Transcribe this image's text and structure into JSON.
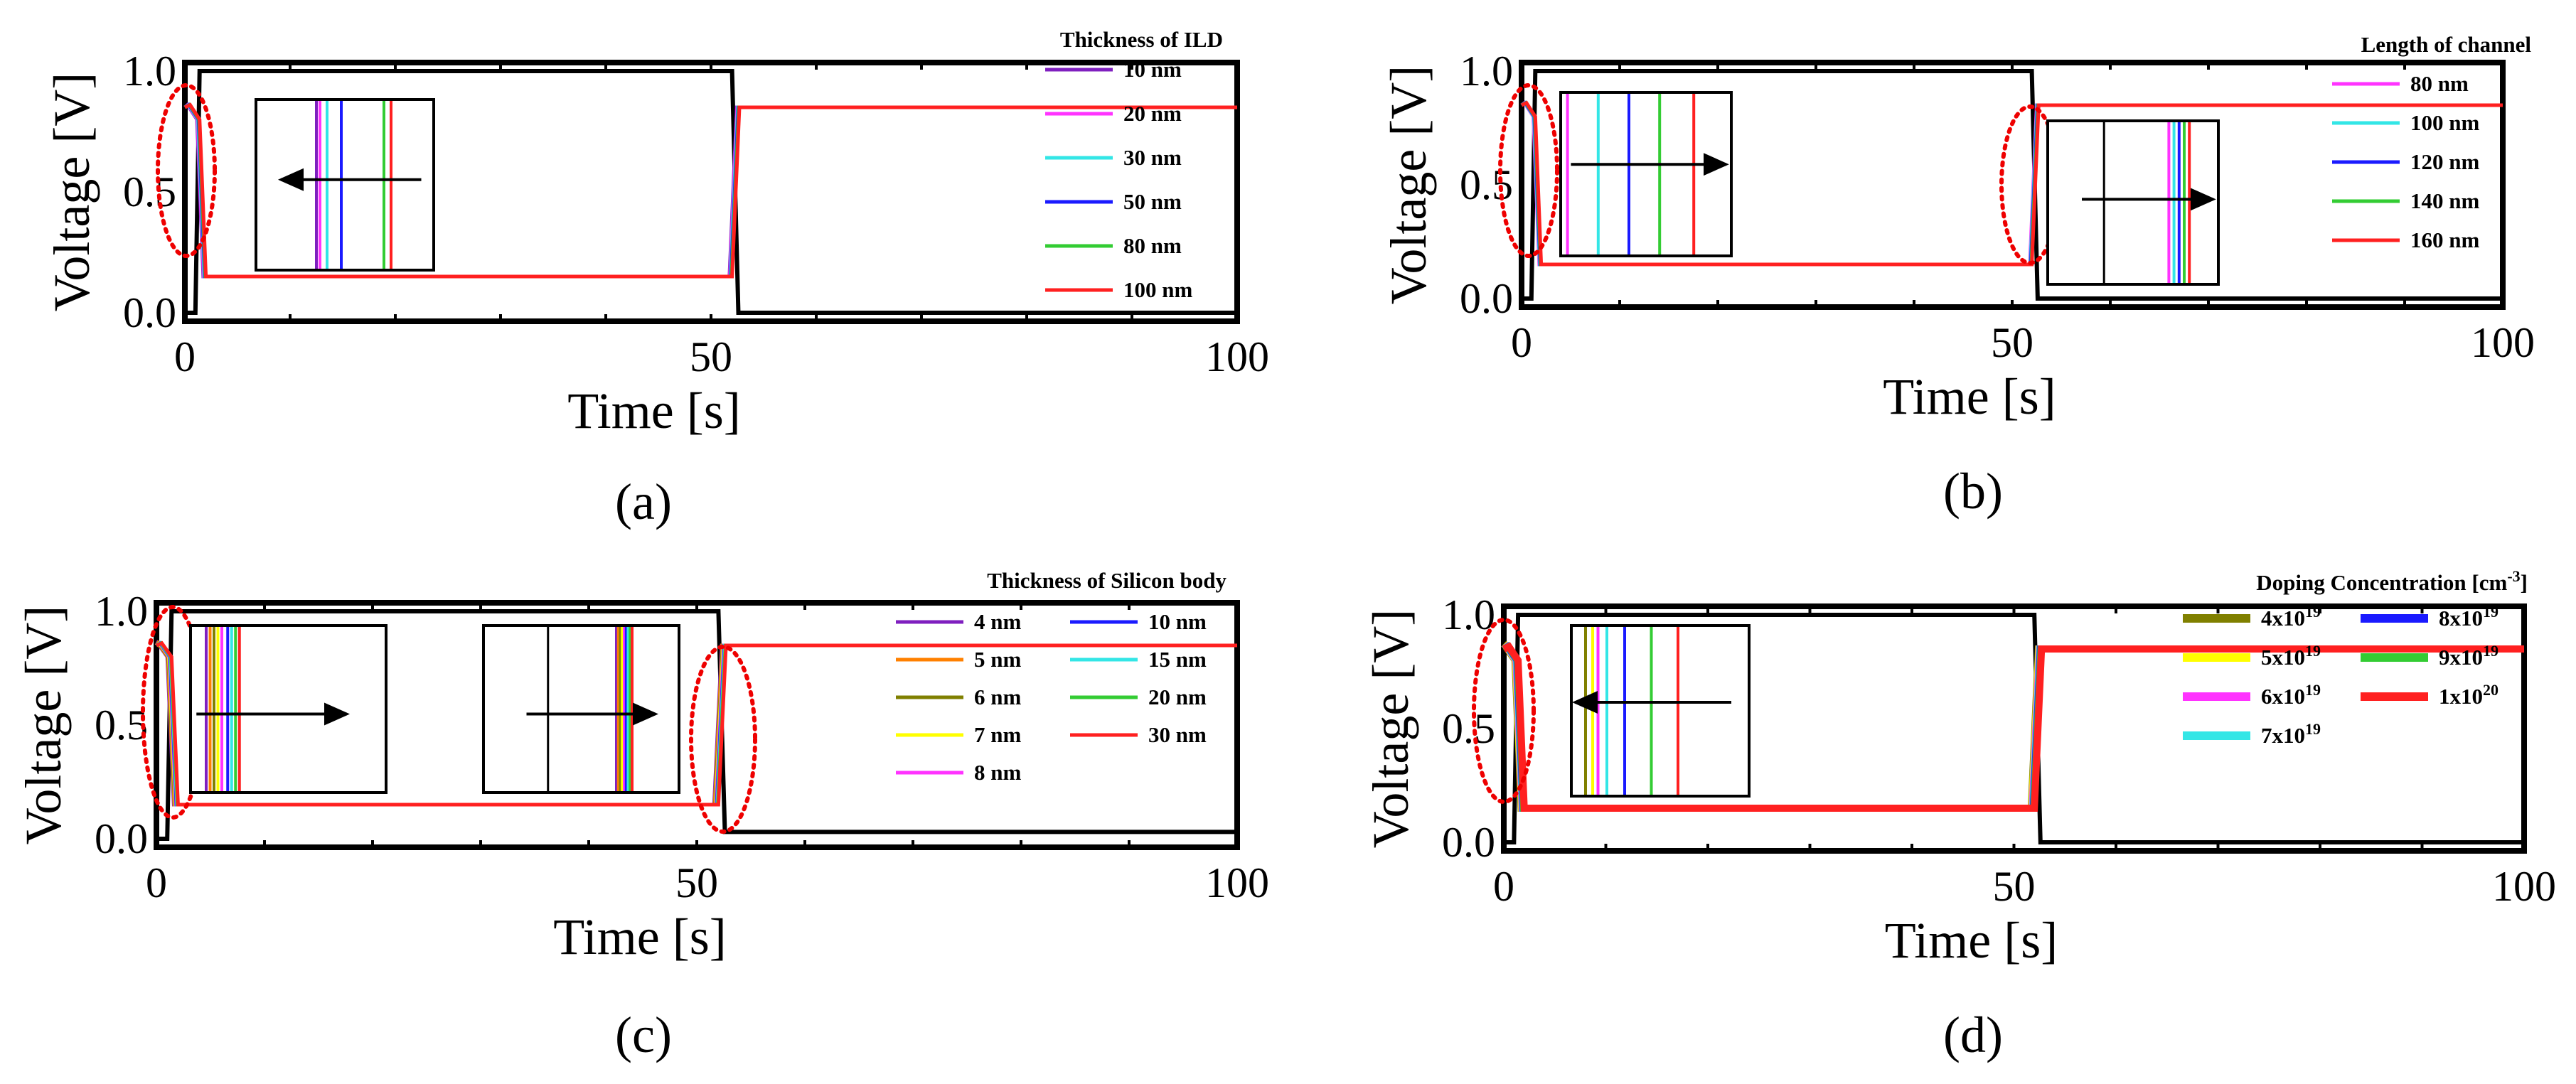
{
  "chart_data": [
    {
      "type": "line",
      "panel_label": "(a)",
      "xlabel": "Time [s]",
      "ylabel": "Voltage [V]",
      "xlim": [
        0,
        100
      ],
      "ylim": [
        0,
        1
      ],
      "xticks": [
        "0",
        "50",
        "100"
      ],
      "yticks": [
        "0.0",
        "0.5",
        "1.0"
      ],
      "legend_title": "Thickness of ILD",
      "legend_columns": 1,
      "series": [
        {
          "name": "10 nm",
          "color": "#7f1fbf"
        },
        {
          "name": "20 nm",
          "color": "#ff33ff"
        },
        {
          "name": "30 nm",
          "color": "#33e6e6"
        },
        {
          "name": "50 nm",
          "color": "#1a1aff"
        },
        {
          "name": "80 nm",
          "color": "#33cc33"
        },
        {
          "name": "100 nm",
          "color": "#ff2020"
        }
      ],
      "input_signal": {
        "name": "input",
        "color": "#000000",
        "x": [
          0,
          1,
          1.4,
          52,
          52.6,
          100
        ],
        "y": [
          0,
          0,
          1,
          1,
          0,
          0
        ]
      },
      "output_signal": {
        "x": [
          0,
          0.5,
          1.4,
          2,
          52,
          52.7,
          100
        ],
        "y": [
          0.85,
          0.86,
          0.8,
          0.15,
          0.15,
          0.85,
          0.85
        ]
      },
      "annotations": [
        "dotted ellipse at falling output edge",
        "inset: zoom of output transition, arrow pointing left"
      ]
    },
    {
      "type": "line",
      "panel_label": "(b)",
      "xlabel": "Time [s]",
      "ylabel": "Voltage [V]",
      "xlim": [
        0,
        100
      ],
      "ylim": [
        0,
        1
      ],
      "xticks": [
        "0",
        "50",
        "100"
      ],
      "yticks": [
        "0.0",
        "0.5",
        "1.0"
      ],
      "legend_title": "Length of channel",
      "legend_columns": 1,
      "series": [
        {
          "name": "80 nm",
          "color": "#ff33ff"
        },
        {
          "name": "100 nm",
          "color": "#33e6e6"
        },
        {
          "name": "120 nm",
          "color": "#1a1aff"
        },
        {
          "name": "140 nm",
          "color": "#33cc33"
        },
        {
          "name": "160 nm",
          "color": "#ff2020"
        }
      ],
      "input_signal": {
        "name": "input",
        "color": "#000000",
        "x": [
          0,
          1,
          1.4,
          52,
          52.6,
          100
        ],
        "y": [
          0,
          0,
          1,
          1,
          0,
          0
        ]
      },
      "output_signal": {
        "x": [
          0,
          0.5,
          1.4,
          2,
          52,
          52.7,
          100
        ],
        "y": [
          0.85,
          0.86,
          0.8,
          0.15,
          0.15,
          0.85,
          0.85
        ]
      },
      "annotations": [
        "dotted ellipse at falling output edge",
        "dotted ellipse at rising output edge",
        "inset: falling edge, arrow right",
        "inset: rising edge, arrow right"
      ]
    },
    {
      "type": "line",
      "panel_label": "(c)",
      "xlabel": "Time [s]",
      "ylabel": "Voltage [V]",
      "xlim": [
        0,
        100
      ],
      "ylim": [
        0,
        1
      ],
      "xticks": [
        "0",
        "50",
        "100"
      ],
      "yticks": [
        "0.0",
        "0.5",
        "1.0"
      ],
      "legend_title": "Thickness of Silicon body",
      "legend_columns": 2,
      "series": [
        {
          "name": "4 nm",
          "color": "#7f1fbf"
        },
        {
          "name": "5 nm",
          "color": "#ff8000"
        },
        {
          "name": "6 nm",
          "color": "#808000"
        },
        {
          "name": "7 nm",
          "color": "#ffff00"
        },
        {
          "name": "8 nm",
          "color": "#ff33ff"
        },
        {
          "name": "10 nm",
          "color": "#1a1aff"
        },
        {
          "name": "15 nm",
          "color": "#33e6e6"
        },
        {
          "name": "20 nm",
          "color": "#33cc33"
        },
        {
          "name": "30 nm",
          "color": "#ff2020"
        }
      ],
      "input_signal": {
        "name": "input",
        "color": "#000000",
        "x": [
          0,
          1,
          1.4,
          52,
          52.6,
          100
        ],
        "y": [
          0,
          0,
          1,
          1,
          0.03,
          0.03
        ]
      },
      "output_signal": {
        "x": [
          0,
          0.5,
          1.4,
          2,
          52,
          52.7,
          100
        ],
        "y": [
          0.85,
          0.86,
          0.8,
          0.15,
          0.15,
          0.85,
          0.85
        ]
      },
      "annotations": [
        "dotted ellipse at falling output edge",
        "dotted ellipse at rising output edge",
        "inset: falling edge, arrow right",
        "inset: rising edge, arrow right"
      ]
    },
    {
      "type": "line",
      "panel_label": "(d)",
      "xlabel": "Time [s]",
      "ylabel": "Voltage [V]",
      "xlim": [
        0,
        100
      ],
      "ylim": [
        0,
        1
      ],
      "xticks": [
        "0",
        "50",
        "100"
      ],
      "yticks": [
        "0.0",
        "0.5",
        "1.0"
      ],
      "legend_title": "Doping Concentration [cm",
      "legend_title_sup": "-3",
      "legend_title_end": "]",
      "legend_columns": 2,
      "series": [
        {
          "name": "4x10",
          "sup": "19",
          "color": "#808000"
        },
        {
          "name": "5x10",
          "sup": "19",
          "color": "#ffff00"
        },
        {
          "name": "6x10",
          "sup": "19",
          "color": "#ff33ff"
        },
        {
          "name": "7x10",
          "sup": "19",
          "color": "#33e6e6"
        },
        {
          "name": "8x10",
          "sup": "19",
          "color": "#1a1aff"
        },
        {
          "name": "9x10",
          "sup": "19",
          "color": "#33cc33"
        },
        {
          "name": "1x10",
          "sup": "20",
          "color": "#ff2020"
        }
      ],
      "input_signal": {
        "name": "input",
        "color": "#000000",
        "x": [
          0,
          1,
          1.4,
          52,
          52.6,
          100
        ],
        "y": [
          0,
          0,
          1,
          1,
          0,
          0
        ]
      },
      "output_signal": {
        "x": [
          0,
          0.5,
          1.4,
          2,
          52,
          52.7,
          100
        ],
        "y": [
          0.85,
          0.86,
          0.8,
          0.15,
          0.15,
          0.85,
          0.85
        ]
      },
      "annotations": [
        "dotted ellipse at falling output edge",
        "inset: falling edge, arrow left"
      ]
    }
  ]
}
